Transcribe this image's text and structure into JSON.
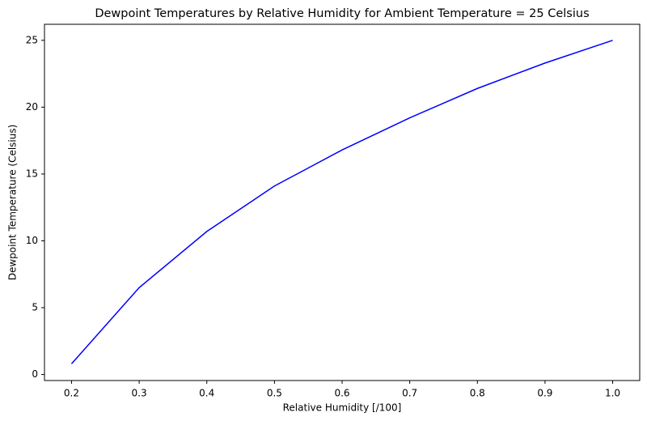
{
  "chart_data": {
    "type": "line",
    "title": "Dewpoint Temperatures by Relative Humidity for Ambient Temperature = 25 Celsius",
    "x_label": "Relative Humidity [/100]",
    "y_label": "Dewpoint Temperature (Celsius)",
    "x": [
      0.2,
      0.3,
      0.4,
      0.5,
      0.6,
      0.7,
      0.8,
      0.9,
      1.0
    ],
    "series": [
      {
        "color": "#0000ff",
        "values": [
          0.8,
          6.5,
          10.7,
          14.1,
          16.8,
          19.2,
          21.4,
          23.3,
          25.0
        ]
      }
    ],
    "xlim": [
      0.16,
      1.04
    ],
    "xticks": [
      0.2,
      0.3,
      0.4,
      0.5,
      0.6,
      0.7,
      0.8,
      0.9,
      {
        "value": 1,
        "label": "1.0"
      }
    ],
    "ylim": [
      -0.45,
      26.2
    ],
    "yticks": [
      0,
      5,
      10,
      15,
      20,
      25
    ],
    "grid": false
  }
}
